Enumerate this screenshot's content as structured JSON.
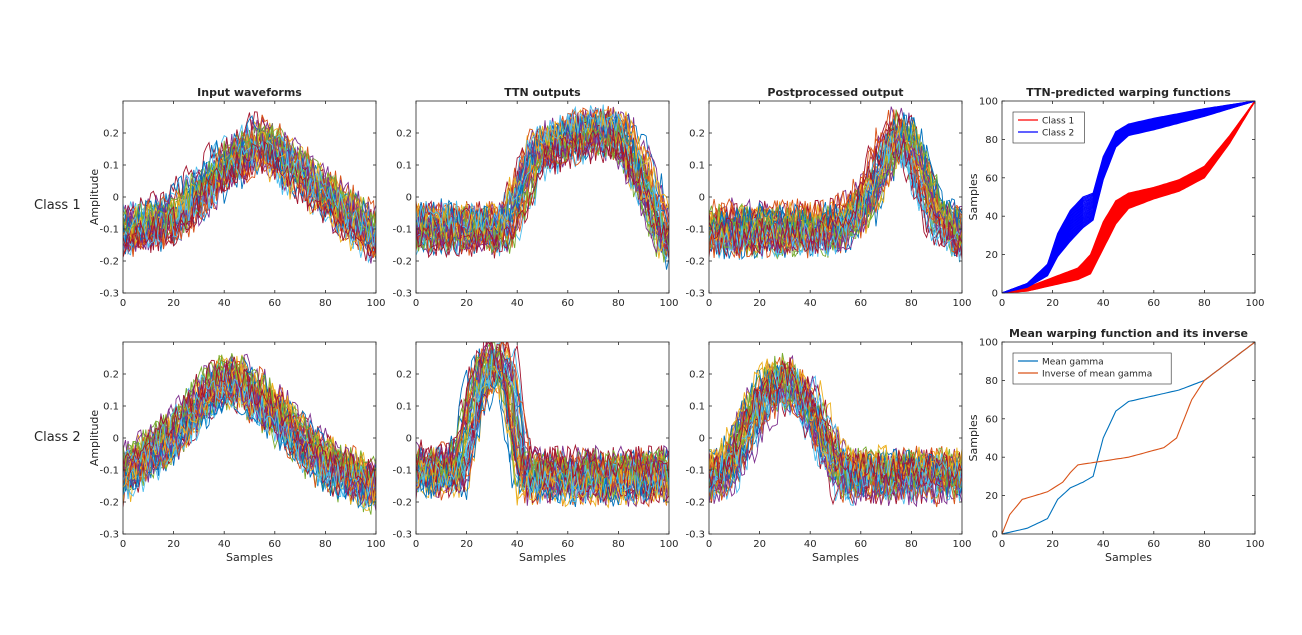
{
  "figure": {
    "row_labels": [
      "Class 1",
      "Class 2"
    ]
  },
  "chart_data": [
    {
      "type": "line",
      "title": "Input waveforms",
      "xlabel": "",
      "ylabel": "Amplitude",
      "xlim": [
        0,
        100
      ],
      "ylim": [
        -0.3,
        0.3
      ],
      "xticks": [
        "0",
        "20",
        "40",
        "60",
        "80",
        "100"
      ],
      "yticks": [
        "-0.3",
        "-0.2",
        "-0.1",
        "0",
        "0.1",
        "0.2"
      ],
      "series_description": "Many noisy waveform realizations",
      "envelope": {
        "x": [
          0,
          20,
          40,
          55,
          70,
          100
        ],
        "y": [
          -0.1,
          -0.06,
          0.1,
          0.18,
          0.08,
          -0.12
        ]
      }
    },
    {
      "type": "line",
      "title": "TTN outputs",
      "xlabel": "",
      "ylabel": "",
      "xlim": [
        0,
        100
      ],
      "ylim": [
        -0.3,
        0.3
      ],
      "xticks": [
        "0",
        "20",
        "40",
        "60",
        "80",
        "100"
      ],
      "yticks": [
        "-0.3",
        "-0.2",
        "-0.1",
        "0",
        "0.1",
        "0.2"
      ],
      "envelope": {
        "x": [
          0,
          36,
          48,
          65,
          80,
          90,
          100
        ],
        "y": [
          -0.1,
          -0.1,
          0.14,
          0.19,
          0.2,
          0.05,
          -0.15
        ]
      }
    },
    {
      "type": "line",
      "title": "Postprocessed output",
      "xlabel": "",
      "ylabel": "",
      "xlim": [
        0,
        100
      ],
      "ylim": [
        -0.3,
        0.3
      ],
      "xticks": [
        "0",
        "20",
        "40",
        "60",
        "80",
        "100"
      ],
      "yticks": [
        "-0.3",
        "-0.2",
        "-0.1",
        "0",
        "0.1",
        "0.2"
      ],
      "envelope": {
        "x": [
          0,
          50,
          62,
          74,
          80,
          90,
          100
        ],
        "y": [
          -0.1,
          -0.1,
          -0.02,
          0.2,
          0.17,
          -0.05,
          -0.12
        ]
      }
    },
    {
      "type": "line",
      "title": "TTN-predicted warping functions",
      "xlabel": "",
      "ylabel": "Samples",
      "xlim": [
        0,
        100
      ],
      "ylim": [
        0,
        100
      ],
      "xticks": [
        "0",
        "20",
        "40",
        "60",
        "80",
        "100"
      ],
      "yticks": [
        "0",
        "20",
        "40",
        "60",
        "80",
        "100"
      ],
      "legend": "top-left",
      "series": [
        {
          "name": "Class 1",
          "color": "#ff0000",
          "x": [
            0,
            10,
            20,
            30,
            35,
            40,
            45,
            50,
            60,
            70,
            80,
            90,
            100
          ],
          "y": [
            0,
            2,
            6,
            10,
            15,
            30,
            42,
            48,
            52,
            56,
            63,
            80,
            100
          ],
          "spread": [
            0,
            1,
            2,
            3,
            5,
            7,
            6,
            4,
            3,
            3,
            3,
            2,
            0
          ]
        },
        {
          "name": "Class 2",
          "color": "#0000ff",
          "x": [
            0,
            10,
            18,
            22,
            27,
            32,
            36,
            40,
            45,
            50,
            60,
            80,
            100
          ],
          "y": [
            0,
            4,
            12,
            25,
            35,
            42,
            45,
            65,
            80,
            85,
            88,
            94,
            100
          ],
          "spread": [
            0,
            1,
            3,
            6,
            8,
            8,
            7,
            6,
            4,
            3,
            3,
            2,
            0
          ]
        }
      ]
    },
    {
      "type": "line",
      "title": "",
      "xlabel": "Samples",
      "ylabel": "Amplitude",
      "xlim": [
        0,
        100
      ],
      "ylim": [
        -0.3,
        0.3
      ],
      "xticks": [
        "0",
        "20",
        "40",
        "60",
        "80",
        "100"
      ],
      "yticks": [
        "-0.3",
        "-0.2",
        "-0.1",
        "0",
        "0.1",
        "0.2"
      ],
      "envelope": {
        "x": [
          0,
          20,
          35,
          45,
          60,
          80,
          100
        ],
        "y": [
          -0.12,
          0.0,
          0.15,
          0.18,
          0.08,
          -0.08,
          -0.15
        ]
      }
    },
    {
      "type": "line",
      "title": "",
      "xlabel": "Samples",
      "ylabel": "",
      "xlim": [
        0,
        100
      ],
      "ylim": [
        -0.3,
        0.3
      ],
      "xticks": [
        "0",
        "20",
        "40",
        "60",
        "80",
        "100"
      ],
      "yticks": [
        "-0.3",
        "-0.2",
        "-0.1",
        "0",
        "0.1",
        "0.2"
      ],
      "envelope": {
        "x": [
          0,
          17,
          24,
          30,
          36,
          42,
          100
        ],
        "y": [
          -0.1,
          -0.1,
          0.15,
          0.24,
          0.2,
          -0.12,
          -0.12
        ]
      }
    },
    {
      "type": "line",
      "title": "",
      "xlabel": "Samples",
      "ylabel": "",
      "xlim": [
        0,
        100
      ],
      "ylim": [
        -0.3,
        0.3
      ],
      "xticks": [
        "0",
        "20",
        "40",
        "60",
        "80",
        "100"
      ],
      "yticks": [
        "-0.3",
        "-0.2",
        "-0.1",
        "0",
        "0.1",
        "0.2"
      ],
      "envelope": {
        "x": [
          0,
          8,
          18,
          28,
          38,
          52,
          100
        ],
        "y": [
          -0.13,
          -0.1,
          0.08,
          0.18,
          0.12,
          -0.12,
          -0.12
        ]
      }
    },
    {
      "type": "line",
      "title": "Mean warping function and its inverse",
      "xlabel": "Samples",
      "ylabel": "Samples",
      "xlim": [
        0,
        100
      ],
      "ylim": [
        0,
        100
      ],
      "xticks": [
        "0",
        "20",
        "40",
        "60",
        "80",
        "100"
      ],
      "yticks": [
        "0",
        "20",
        "40",
        "60",
        "80",
        "100"
      ],
      "legend": "top-left",
      "series": [
        {
          "name": "Mean gamma",
          "color": "#0072bd",
          "x": [
            0,
            10,
            18,
            22,
            27,
            32,
            36,
            40,
            45,
            50,
            60,
            70,
            80,
            90,
            100
          ],
          "y": [
            0,
            3,
            8,
            18,
            24,
            27,
            30,
            50,
            64,
            69,
            72,
            75,
            80,
            90,
            100
          ],
          "spread": []
        },
        {
          "name": "Inverse of mean gamma",
          "color": "#d95319",
          "x": [
            0,
            3,
            8,
            18,
            24,
            27,
            30,
            50,
            64,
            69,
            72,
            75,
            80,
            90,
            100
          ],
          "y": [
            0,
            10,
            18,
            22,
            27,
            32,
            36,
            40,
            45,
            50,
            60,
            70,
            80,
            90,
            100
          ],
          "spread": []
        }
      ]
    }
  ]
}
